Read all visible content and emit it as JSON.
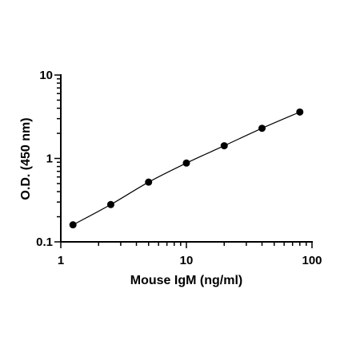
{
  "chart_data": {
    "type": "scatter",
    "xscale": "log",
    "yscale": "log",
    "xlabel": "Mouse IgM (ng/ml)",
    "ylabel": "O.D. (450 nm)",
    "xlim": [
      1,
      100
    ],
    "ylim": [
      0.1,
      10
    ],
    "xticks": [
      {
        "value": 1,
        "label": "1"
      },
      {
        "value": 10,
        "label": "10"
      },
      {
        "value": 100,
        "label": "100"
      }
    ],
    "yticks": [
      {
        "value": 0.1,
        "label": "0.1"
      },
      {
        "value": 1,
        "label": "1"
      },
      {
        "value": 10,
        "label": "10"
      }
    ],
    "grid": false,
    "series": [
      {
        "x": [
          1.25,
          2.5,
          5,
          10,
          20,
          40,
          80
        ],
        "y": [
          0.16,
          0.28,
          0.52,
          0.88,
          1.42,
          2.3,
          3.6
        ],
        "marker_color": "#000000",
        "fit_line": true
      }
    ]
  }
}
